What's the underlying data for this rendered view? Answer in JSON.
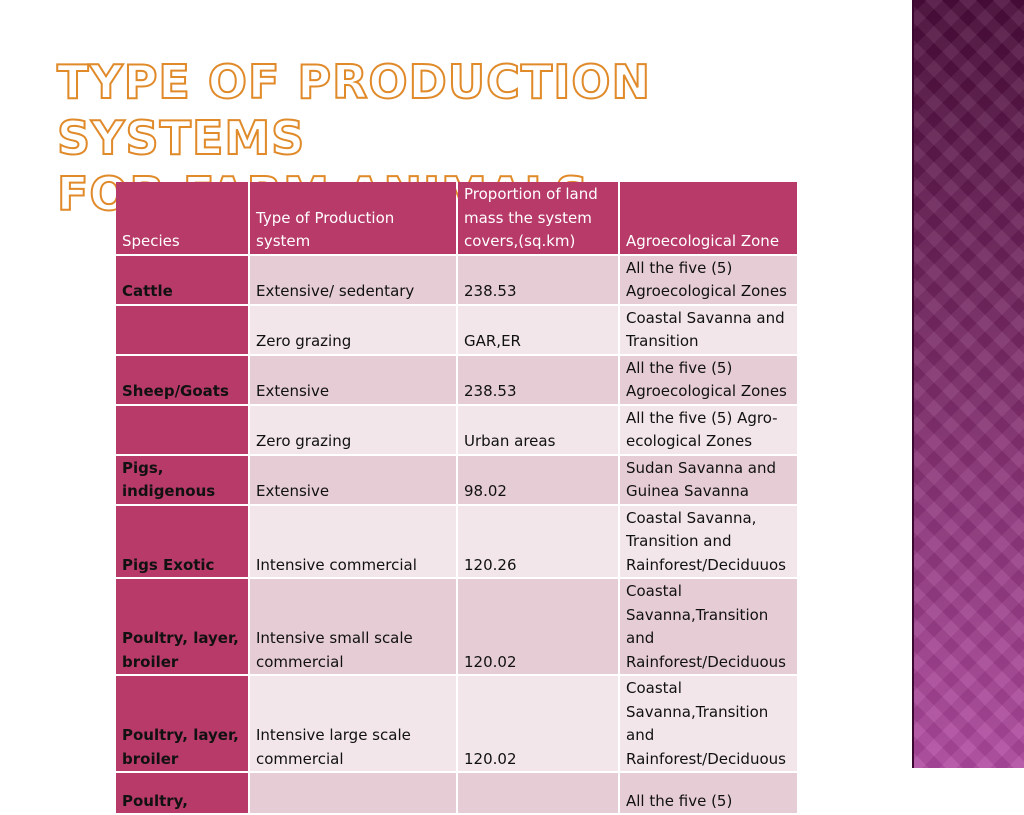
{
  "slide": {
    "title_line1": "Type of production systems",
    "title_line2": "for farm animals"
  },
  "table": {
    "headers": [
      "Species",
      "Type of Production system",
      "Proportion of land mass the system covers,(sq.km)",
      "Agroecological Zone"
    ],
    "rows": [
      [
        "Cattle",
        "Extensive/ sedentary",
        "238.53",
        "All the five (5) Agroecological Zones"
      ],
      [
        "",
        "Zero grazing",
        "GAR,ER",
        "Coastal Savanna and Transition"
      ],
      [
        "Sheep/Goats",
        "Extensive",
        "238.53",
        "All the five (5) Agroecological Zones"
      ],
      [
        "",
        "Zero grazing",
        "Urban areas",
        "All the five (5) Agro-ecological Zones"
      ],
      [
        "Pigs, indigenous",
        "Extensive",
        "98.02",
        "Sudan Savanna and Guinea Savanna"
      ],
      [
        "Pigs Exotic",
        "Intensive commercial",
        "120.26",
        "Coastal Savanna, Transition and Rainforest/Deciduuos"
      ],
      [
        "Poultry, layer, broiler",
        "Intensive  small scale commercial",
        "120.02",
        "Coastal Savanna,Transition and Rainforest/Deciduous"
      ],
      [
        "Poultry, layer, broiler",
        "Intensive  large scale commercial",
        "120.02",
        "Coastal Savanna,Transition and Rainforest/Deciduous"
      ],
      [
        "Poultry,",
        "",
        "",
        "All the five (5)"
      ]
    ]
  },
  "colors": {
    "header_bg": "#b83a68",
    "row_dark": "#e6cdd5",
    "row_light": "#f2e6ea",
    "title_outline": "#e08a2a",
    "side_panel": "#7a2a66"
  }
}
